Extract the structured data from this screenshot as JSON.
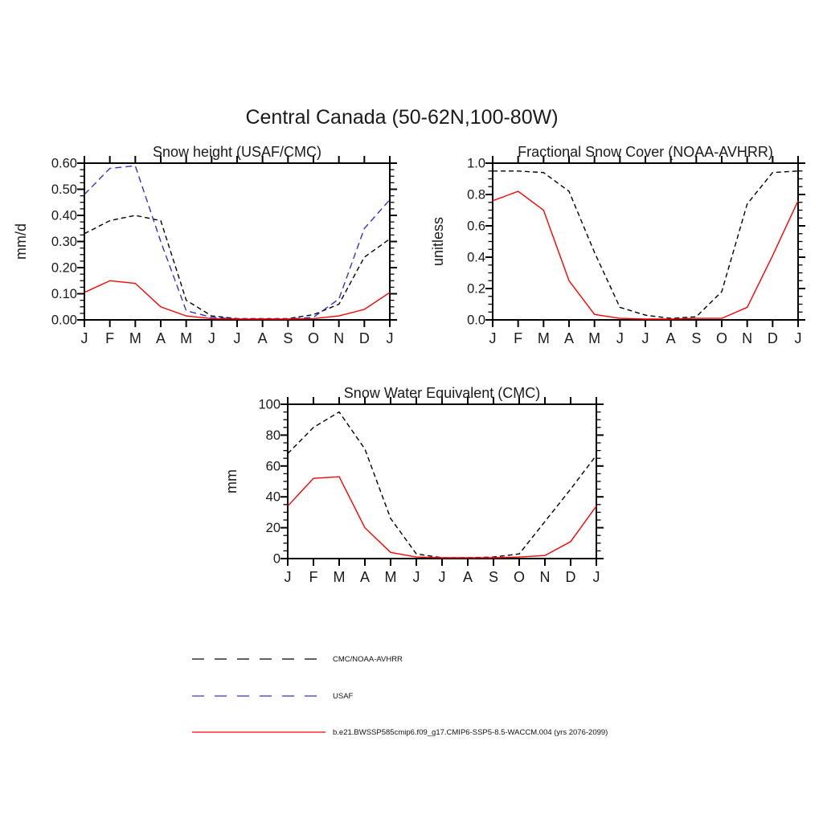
{
  "page": {
    "title": "Central Canada (50-62N,100-80W)"
  },
  "colors": {
    "cmc_noaa": "#000000",
    "usaf": "#3333cc",
    "model": "#ff0000",
    "axis": "#000000"
  },
  "months": [
    "J",
    "F",
    "M",
    "A",
    "M",
    "J",
    "J",
    "A",
    "S",
    "O",
    "N",
    "D",
    "J"
  ],
  "chart_data": [
    {
      "type": "line",
      "title": "Snow height (USAF/CMC)",
      "xlabel": "",
      "ylabel": "mm/d",
      "ylim": [
        0,
        0.6
      ],
      "yticks": [
        "0.00",
        "0.10",
        "0.20",
        "0.30",
        "0.40",
        "0.50",
        "0.60"
      ],
      "minor_per_major": 4,
      "grid": false,
      "categories": [
        "J",
        "F",
        "M",
        "A",
        "M",
        "J",
        "J",
        "A",
        "S",
        "O",
        "N",
        "D",
        "J"
      ],
      "series": [
        {
          "name": "CMC/NOAA-AVHRR",
          "color": "#000000",
          "line_style": "dashed",
          "values": [
            0.33,
            0.38,
            0.4,
            0.38,
            0.075,
            0.015,
            0.005,
            0.005,
            0.005,
            0.02,
            0.06,
            0.24,
            0.31
          ]
        },
        {
          "name": "USAF",
          "color": "#3333cc",
          "line_style": "dashed",
          "values": [
            0.48,
            0.58,
            0.59,
            0.3,
            0.035,
            0.01,
            0.003,
            0.003,
            0.003,
            0.01,
            0.08,
            0.35,
            0.46
          ]
        },
        {
          "name": "b.e21.BWSSP585cmip6.f09_g17.CMIP6-SSP5-8.5-WACCM.004 (yrs 2076-2099)",
          "color": "#ff0000",
          "line_style": "solid",
          "values": [
            0.105,
            0.15,
            0.14,
            0.05,
            0.015,
            0.005,
            0.003,
            0.003,
            0.003,
            0.005,
            0.015,
            0.04,
            0.105
          ]
        }
      ]
    },
    {
      "type": "line",
      "title": "Fractional Snow Cover (NOAA-AVHRR)",
      "xlabel": "",
      "ylabel": "unitless",
      "ylim": [
        0,
        1.0
      ],
      "yticks": [
        "0.0",
        "0.2",
        "0.4",
        "0.6",
        "0.8",
        "1.0"
      ],
      "minor_per_major": 4,
      "grid": false,
      "categories": [
        "J",
        "F",
        "M",
        "A",
        "M",
        "J",
        "J",
        "A",
        "S",
        "O",
        "N",
        "D",
        "J"
      ],
      "series": [
        {
          "name": "CMC/NOAA-AVHRR",
          "color": "#000000",
          "line_style": "dashed",
          "values": [
            0.95,
            0.95,
            0.94,
            0.82,
            0.43,
            0.08,
            0.03,
            0.01,
            0.02,
            0.18,
            0.74,
            0.94,
            0.95
          ]
        },
        {
          "name": "b.e21.BWSSP585cmip6.f09_g17.CMIP6-SSP5-8.5-WACCM.004 (yrs 2076-2099)",
          "color": "#ff0000",
          "line_style": "solid",
          "values": [
            0.76,
            0.82,
            0.7,
            0.25,
            0.035,
            0.01,
            0.005,
            0.005,
            0.01,
            0.01,
            0.08,
            0.41,
            0.76
          ]
        }
      ]
    },
    {
      "type": "line",
      "title": "Snow Water Equivalent (CMC)",
      "xlabel": "",
      "ylabel": "mm",
      "ylim": [
        0,
        100
      ],
      "yticks": [
        "0",
        "20",
        "40",
        "60",
        "80",
        "100"
      ],
      "minor_per_major": 4,
      "grid": false,
      "categories": [
        "J",
        "F",
        "M",
        "A",
        "M",
        "J",
        "J",
        "A",
        "S",
        "O",
        "N",
        "D",
        "J"
      ],
      "series": [
        {
          "name": "CMC/NOAA-AVHRR",
          "color": "#000000",
          "line_style": "dashed",
          "values": [
            68,
            85,
            95,
            71,
            26,
            3,
            0.5,
            0.5,
            1,
            3,
            24,
            45,
            67
          ]
        },
        {
          "name": "b.e21.BWSSP585cmip6.f09_g17.CMIP6-SSP5-8.5-WACCM.004 (yrs 2076-2099)",
          "color": "#ff0000",
          "line_style": "solid",
          "values": [
            34,
            52,
            53,
            20,
            4,
            1,
            0.5,
            0.5,
            0.5,
            1,
            2,
            11,
            34
          ]
        }
      ]
    }
  ],
  "legend": {
    "items": [
      {
        "label": "CMC/NOAA-AVHRR",
        "color": "#000000",
        "line_style": "dashed"
      },
      {
        "label": "USAF",
        "color": "#3333cc",
        "line_style": "dashed"
      },
      {
        "label": "b.e21.BWSSP585cmip6.f09_g17.CMIP6-SSP5-8.5-WACCM.004 (yrs 2076-2099)",
        "color": "#ff0000",
        "line_style": "solid"
      }
    ]
  }
}
